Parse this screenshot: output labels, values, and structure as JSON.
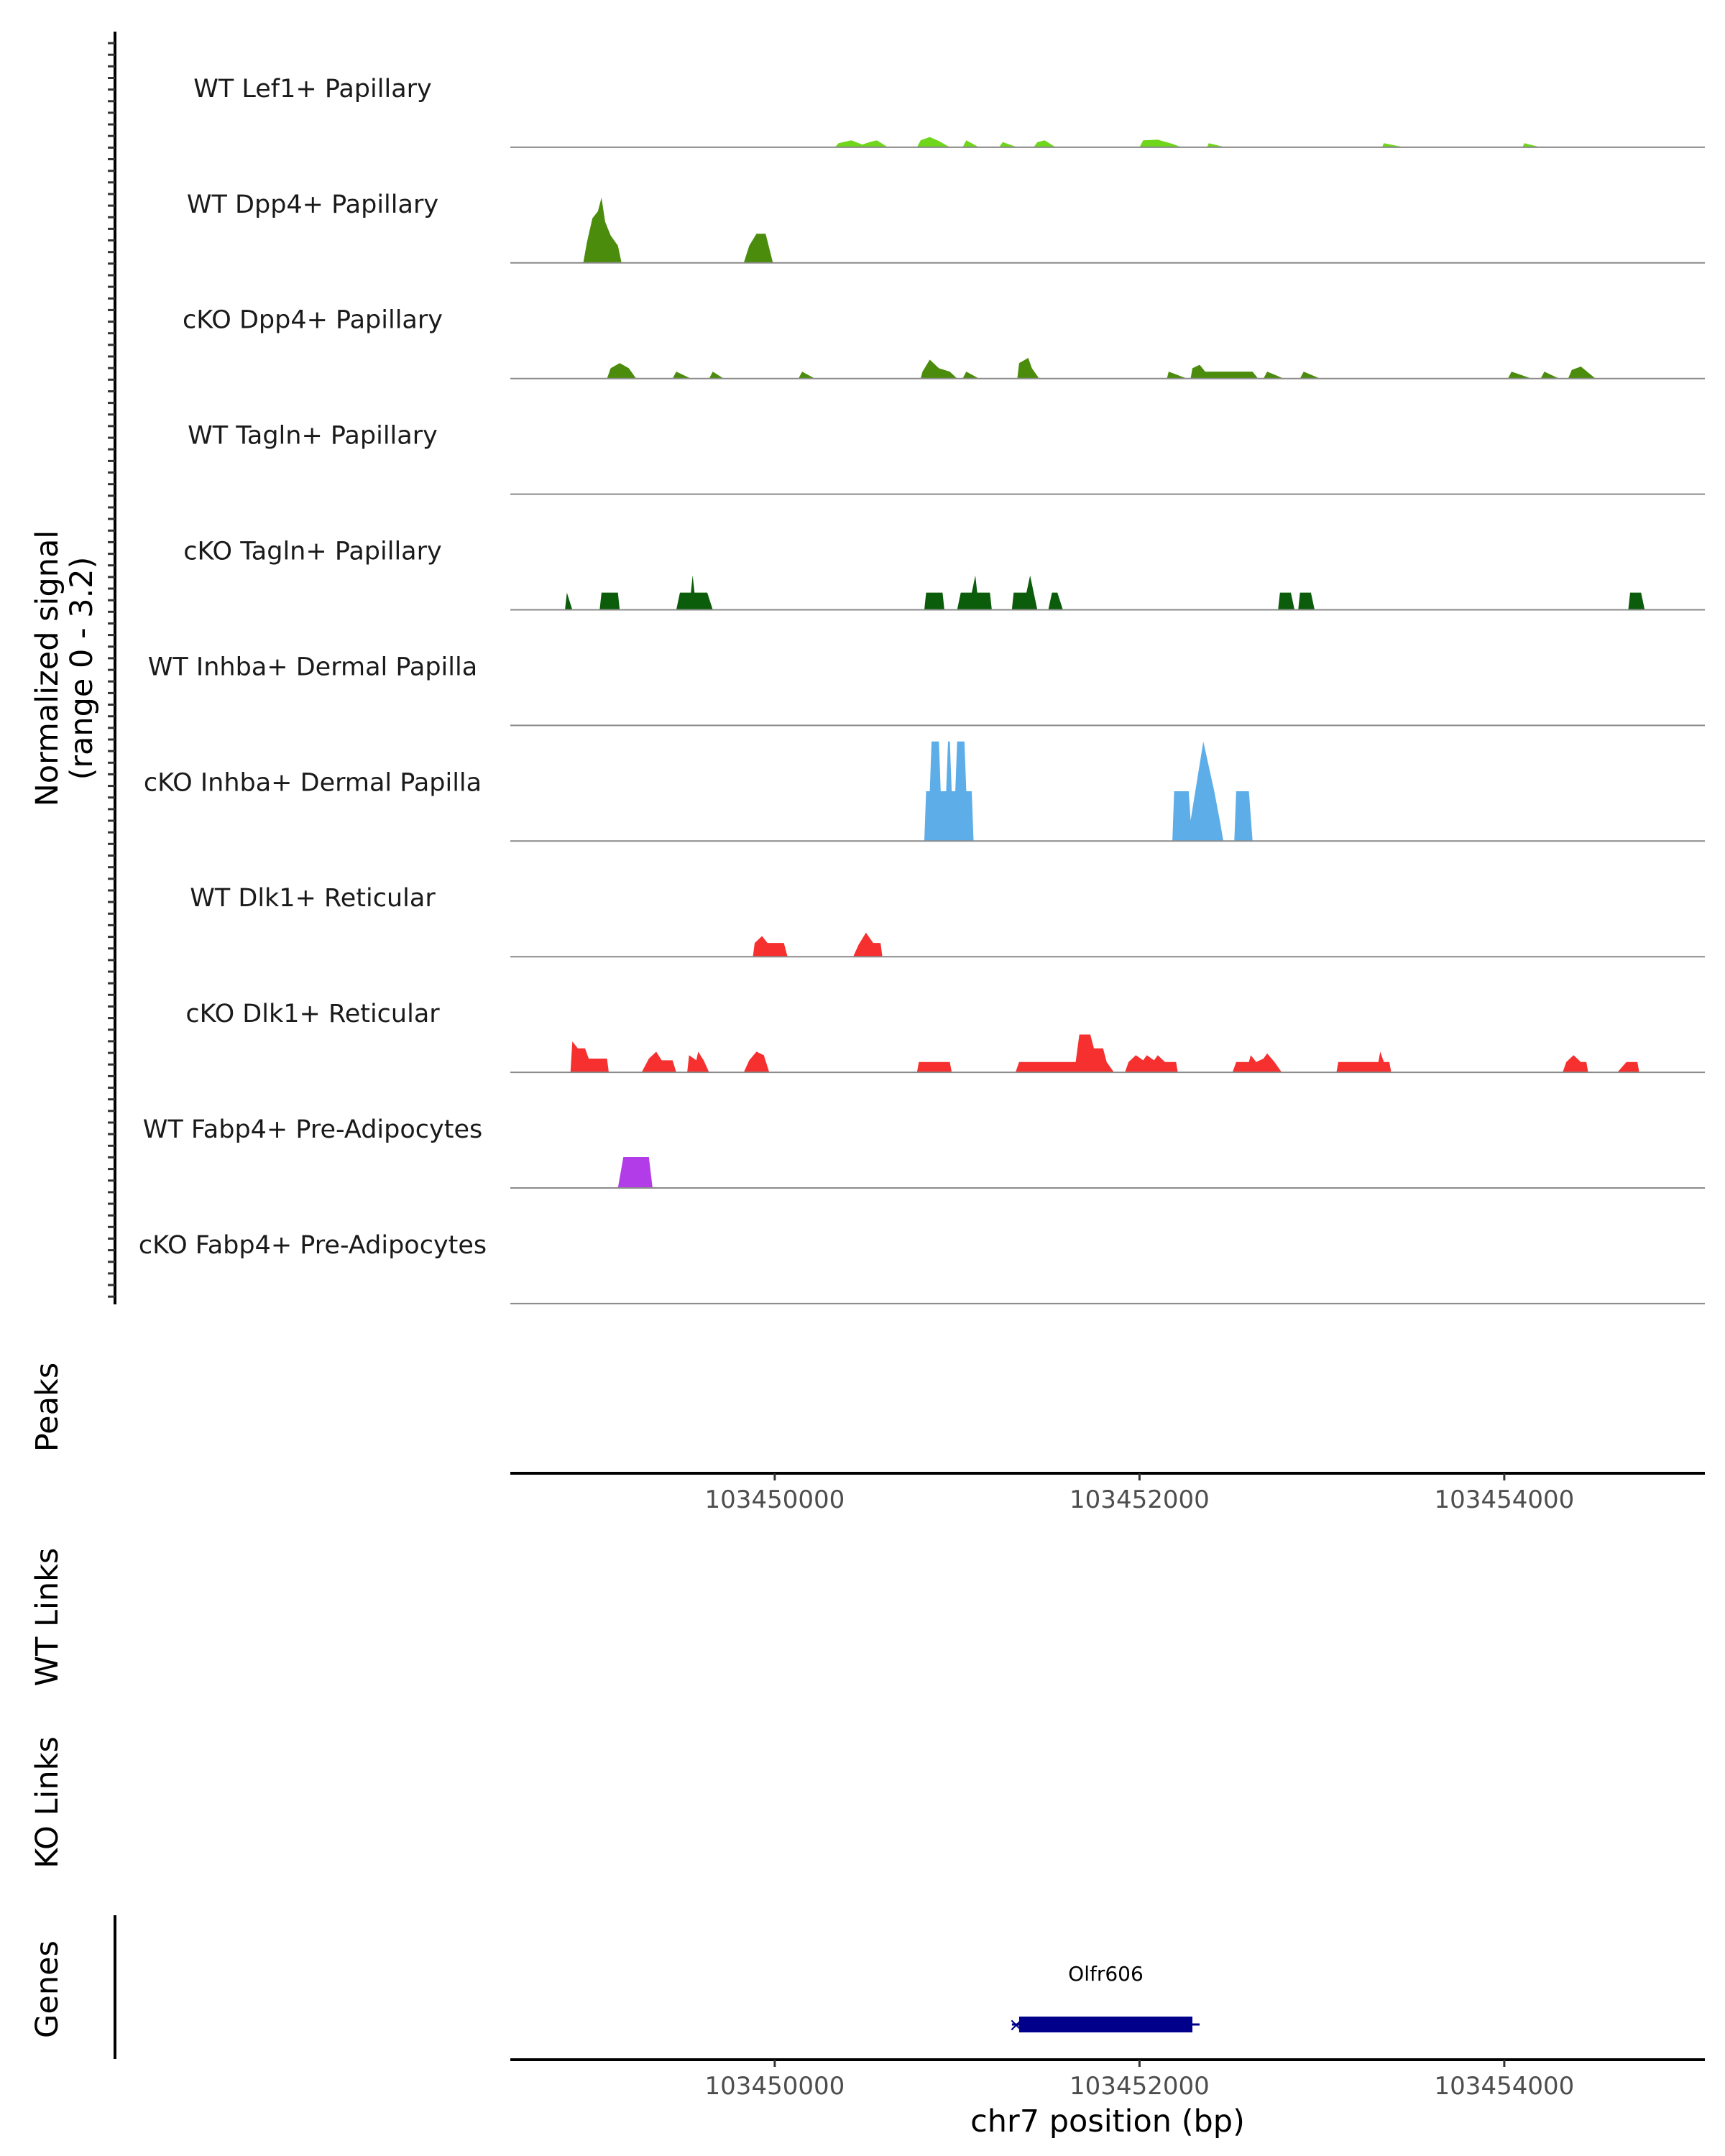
{
  "chart_data": {
    "type": "area",
    "title": "",
    "chromosome": "chr7",
    "xlim": [
      103448550,
      103455100
    ],
    "ylabel": [
      "Normalized signal",
      "(range 0 - 3.2)"
    ],
    "ylim": [
      0,
      3.2
    ],
    "xlabel": "chr7 position (bp)",
    "xticks": [
      103450000,
      103452000,
      103454000
    ],
    "xtick_labels": [
      "103450000",
      "103452000",
      "103454000"
    ],
    "panel_labels": {
      "peaks": "Peaks",
      "wt_links": "WT Links",
      "ko_links": "KO Links",
      "genes": "Genes"
    },
    "tracks": [
      {
        "name": "WT Lef1+ Papillary",
        "color": "#6fd61c",
        "values": [
          [
            103450330,
            0
          ],
          [
            103450350,
            0.12
          ],
          [
            103450420,
            0.2
          ],
          [
            103450480,
            0.08
          ],
          [
            103450520,
            0.15
          ],
          [
            103450560,
            0.2
          ],
          [
            103450620,
            0
          ],
          [
            103450780,
            0
          ],
          [
            103450800,
            0.2
          ],
          [
            103450850,
            0.3
          ],
          [
            103450900,
            0.18
          ],
          [
            103450960,
            0
          ],
          [
            103451030,
            0
          ],
          [
            103451050,
            0.2
          ],
          [
            103451120,
            0
          ],
          [
            103451230,
            0
          ],
          [
            103451250,
            0.15
          ],
          [
            103451330,
            0
          ],
          [
            103451420,
            0
          ],
          [
            103451440,
            0.15
          ],
          [
            103451480,
            0.2
          ],
          [
            103451540,
            0
          ],
          [
            103452000,
            0
          ],
          [
            103452020,
            0.2
          ],
          [
            103452100,
            0.22
          ],
          [
            103452180,
            0.1
          ],
          [
            103452230,
            0
          ],
          [
            103452370,
            0
          ],
          [
            103452380,
            0.12
          ],
          [
            103452470,
            0
          ],
          [
            103453330,
            0
          ],
          [
            103453340,
            0.12
          ],
          [
            103453450,
            0
          ],
          [
            103454100,
            0
          ],
          [
            103454110,
            0.12
          ],
          [
            103454200,
            0
          ]
        ]
      },
      {
        "name": "WT Dpp4+ Papillary",
        "color": "#4b8c0c",
        "values": [
          [
            103448950,
            0
          ],
          [
            103448970,
            0.6
          ],
          [
            103449000,
            1.3
          ],
          [
            103449030,
            1.5
          ],
          [
            103449050,
            1.9
          ],
          [
            103449070,
            1.2
          ],
          [
            103449100,
            0.8
          ],
          [
            103449140,
            0.5
          ],
          [
            103449160,
            0
          ],
          [
            103449830,
            0
          ],
          [
            103449860,
            0.5
          ],
          [
            103449900,
            0.85
          ],
          [
            103449950,
            0.85
          ],
          [
            103449990,
            0
          ],
          [
            103450160,
            0
          ],
          [
            103450160,
            0
          ]
        ]
      },
      {
        "name": "cKO Dpp4+ Papillary",
        "color": "#4b8c0c",
        "values": [
          [
            103449080,
            0
          ],
          [
            103449100,
            0.3
          ],
          [
            103449150,
            0.45
          ],
          [
            103449200,
            0.3
          ],
          [
            103449240,
            0
          ],
          [
            103449440,
            0
          ],
          [
            103449460,
            0.2
          ],
          [
            103449540,
            0
          ],
          [
            103449640,
            0
          ],
          [
            103449660,
            0.2
          ],
          [
            103449720,
            0
          ],
          [
            103450130,
            0
          ],
          [
            103450150,
            0.2
          ],
          [
            103450220,
            0
          ],
          [
            103450800,
            0
          ],
          [
            103450810,
            0.2
          ],
          [
            103450850,
            0.55
          ],
          [
            103450900,
            0.3
          ],
          [
            103450960,
            0.2
          ],
          [
            103451000,
            0
          ],
          [
            103451030,
            0
          ],
          [
            103451050,
            0.2
          ],
          [
            103451120,
            0
          ],
          [
            103451330,
            0
          ],
          [
            103451340,
            0.45
          ],
          [
            103451390,
            0.6
          ],
          [
            103451410,
            0.3
          ],
          [
            103451450,
            0
          ],
          [
            103452150,
            0
          ],
          [
            103452160,
            0.2
          ],
          [
            103452260,
            0
          ],
          [
            103452280,
            0
          ],
          [
            103452290,
            0.3
          ],
          [
            103452330,
            0.4
          ],
          [
            103452360,
            0.2
          ],
          [
            103452620,
            0.2
          ],
          [
            103452650,
            0
          ],
          [
            103452680,
            0
          ],
          [
            103452700,
            0.2
          ],
          [
            103452790,
            0
          ],
          [
            103452880,
            0
          ],
          [
            103452900,
            0.2
          ],
          [
            103452990,
            0
          ],
          [
            103454020,
            0
          ],
          [
            103454040,
            0.2
          ],
          [
            103454150,
            0
          ],
          [
            103454200,
            0
          ],
          [
            103454220,
            0.2
          ],
          [
            103454300,
            0
          ],
          [
            103454350,
            0
          ],
          [
            103454370,
            0.25
          ],
          [
            103454420,
            0.35
          ],
          [
            103454500,
            0
          ]
        ]
      },
      {
        "name": "WT Tagln+ Papillary",
        "color": "#0b5c0b",
        "values": []
      },
      {
        "name": "cKO Tagln+ Papillary",
        "color": "#0b5c0b",
        "values": [
          [
            103448850,
            0
          ],
          [
            103448860,
            0.5
          ],
          [
            103448890,
            0
          ],
          [
            103449040,
            0
          ],
          [
            103449050,
            0.5
          ],
          [
            103449140,
            0.5
          ],
          [
            103449150,
            0
          ],
          [
            103449460,
            0
          ],
          [
            103449480,
            0.5
          ],
          [
            103449540,
            0.5
          ],
          [
            103449550,
            1.0
          ],
          [
            103449560,
            0.5
          ],
          [
            103449630,
            0.5
          ],
          [
            103449660,
            0
          ],
          [
            103450820,
            0
          ],
          [
            103450830,
            0.5
          ],
          [
            103450920,
            0.5
          ],
          [
            103450930,
            0
          ],
          [
            103451000,
            0
          ],
          [
            103451020,
            0.5
          ],
          [
            103451080,
            0.5
          ],
          [
            103451100,
            1.0
          ],
          [
            103451110,
            0.5
          ],
          [
            103451180,
            0.5
          ],
          [
            103451190,
            0
          ],
          [
            103451300,
            0
          ],
          [
            103451310,
            0.5
          ],
          [
            103451380,
            0.5
          ],
          [
            103451400,
            1.0
          ],
          [
            103451420,
            0.5
          ],
          [
            103451440,
            0
          ],
          [
            103451500,
            0
          ],
          [
            103451520,
            0.5
          ],
          [
            103451550,
            0.5
          ],
          [
            103451580,
            0
          ],
          [
            103452760,
            0
          ],
          [
            103452770,
            0.5
          ],
          [
            103452830,
            0.5
          ],
          [
            103452850,
            0
          ],
          [
            103452870,
            0
          ],
          [
            103452880,
            0.5
          ],
          [
            103452940,
            0.5
          ],
          [
            103452960,
            0
          ],
          [
            103454680,
            0
          ],
          [
            103454690,
            0.5
          ],
          [
            103454750,
            0.5
          ],
          [
            103454770,
            0
          ]
        ]
      },
      {
        "name": "WT Inhba+ Dermal Papilla",
        "color": "#5dade8",
        "values": []
      },
      {
        "name": "cKO Inhba+ Dermal Papilla",
        "color": "#5dade8",
        "values": [
          [
            103450820,
            0
          ],
          [
            103450830,
            1.45
          ],
          [
            103450850,
            1.45
          ],
          [
            103450860,
            2.9
          ],
          [
            103450900,
            2.9
          ],
          [
            103450910,
            1.45
          ],
          [
            103450940,
            1.45
          ],
          [
            103450950,
            2.9
          ],
          [
            103450960,
            2.9
          ],
          [
            103450970,
            1.45
          ],
          [
            103450990,
            1.45
          ],
          [
            103451000,
            2.9
          ],
          [
            103451040,
            2.9
          ],
          [
            103451050,
            1.45
          ],
          [
            103451080,
            1.45
          ],
          [
            103451090,
            0
          ],
          [
            103452180,
            0
          ],
          [
            103452190,
            1.45
          ],
          [
            103452270,
            1.45
          ],
          [
            103452280,
            0.6
          ],
          [
            103452350,
            2.9
          ],
          [
            103452410,
            1.45
          ],
          [
            103452440,
            0.6
          ],
          [
            103452460,
            0
          ],
          [
            103452520,
            0
          ],
          [
            103452530,
            1.45
          ],
          [
            103452600,
            1.45
          ],
          [
            103452620,
            0
          ]
        ]
      },
      {
        "name": "WT Dlk1+ Reticular",
        "color": "#f5302f",
        "values": [
          [
            103449880,
            0
          ],
          [
            103449890,
            0.4
          ],
          [
            103449930,
            0.6
          ],
          [
            103449960,
            0.4
          ],
          [
            103450050,
            0.4
          ],
          [
            103450070,
            0
          ],
          [
            103450430,
            0
          ],
          [
            103450460,
            0.35
          ],
          [
            103450500,
            0.7
          ],
          [
            103450540,
            0.4
          ],
          [
            103450580,
            0.4
          ],
          [
            103450590,
            0
          ]
        ]
      },
      {
        "name": "cKO Dlk1+ Reticular",
        "color": "#f5302f",
        "values": [
          [
            103448880,
            0
          ],
          [
            103448890,
            0.9
          ],
          [
            103448920,
            0.7
          ],
          [
            103448960,
            0.7
          ],
          [
            103448980,
            0.4
          ],
          [
            103449080,
            0.4
          ],
          [
            103449090,
            0
          ],
          [
            103449270,
            0
          ],
          [
            103449310,
            0.4
          ],
          [
            103449350,
            0.6
          ],
          [
            103449380,
            0.35
          ],
          [
            103449440,
            0.35
          ],
          [
            103449460,
            0
          ],
          [
            103449520,
            0
          ],
          [
            103449530,
            0.5
          ],
          [
            103449570,
            0.35
          ],
          [
            103449580,
            0.6
          ],
          [
            103449610,
            0.35
          ],
          [
            103449640,
            0
          ],
          [
            103449830,
            0
          ],
          [
            103449860,
            0.35
          ],
          [
            103449900,
            0.6
          ],
          [
            103449940,
            0.5
          ],
          [
            103449970,
            0
          ],
          [
            103450780,
            0
          ],
          [
            103450790,
            0.3
          ],
          [
            103450960,
            0.3
          ],
          [
            103450970,
            0
          ],
          [
            103451320,
            0
          ],
          [
            103451340,
            0.3
          ],
          [
            103451650,
            0.3
          ],
          [
            103451670,
            1.1
          ],
          [
            103451730,
            1.1
          ],
          [
            103451750,
            0.7
          ],
          [
            103451800,
            0.7
          ],
          [
            103451820,
            0.3
          ],
          [
            103451860,
            0
          ],
          [
            103451920,
            0
          ],
          [
            103451940,
            0.3
          ],
          [
            103451980,
            0.5
          ],
          [
            103452020,
            0.35
          ],
          [
            103452040,
            0.5
          ],
          [
            103452080,
            0.35
          ],
          [
            103452100,
            0.5
          ],
          [
            103452140,
            0.3
          ],
          [
            103452200,
            0.3
          ],
          [
            103452210,
            0
          ],
          [
            103452510,
            0
          ],
          [
            103452530,
            0.3
          ],
          [
            103452600,
            0.3
          ],
          [
            103452610,
            0.5
          ],
          [
            103452640,
            0.3
          ],
          [
            103452680,
            0.4
          ],
          [
            103452700,
            0.55
          ],
          [
            103452740,
            0.3
          ],
          [
            103452780,
            0
          ],
          [
            103453080,
            0
          ],
          [
            103453090,
            0.3
          ],
          [
            103453310,
            0.3
          ],
          [
            103453320,
            0.6
          ],
          [
            103453340,
            0.3
          ],
          [
            103453370,
            0.3
          ],
          [
            103453380,
            0
          ],
          [
            103454320,
            0
          ],
          [
            103454340,
            0.3
          ],
          [
            103454380,
            0.5
          ],
          [
            103454420,
            0.3
          ],
          [
            103454450,
            0.3
          ],
          [
            103454460,
            0
          ],
          [
            103454620,
            0
          ],
          [
            103454670,
            0.3
          ],
          [
            103454730,
            0.3
          ],
          [
            103454740,
            0
          ]
        ]
      },
      {
        "name": "WT Fabp4+ Pre-Adipocytes",
        "color": "#b23ce8",
        "values": [
          [
            103449140,
            0
          ],
          [
            103449170,
            0.9
          ],
          [
            103449310,
            0.9
          ],
          [
            103449330,
            0
          ]
        ]
      },
      {
        "name": "cKO Fabp4+ Pre-Adipocytes",
        "color": "#b23ce8",
        "values": []
      }
    ],
    "genes": [
      {
        "name": "Olfr606",
        "start": 103451340,
        "end": 103452290,
        "strand": "-",
        "color": "#00008b"
      }
    ]
  }
}
